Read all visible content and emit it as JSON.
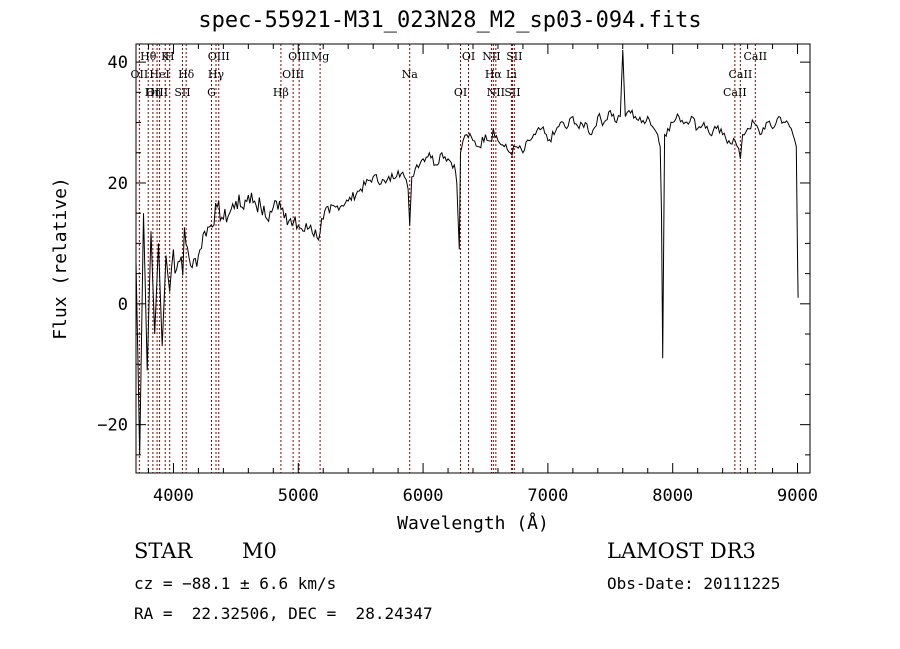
{
  "chart_data": {
    "type": "line",
    "title": "spec-55921-M31_023N28_M2_sp03-094.fits",
    "xlabel": "Wavelength (Å)",
    "ylabel": "Flux (relative)",
    "xlim": [
      3700,
      9100
    ],
    "ylim": [
      -28,
      43
    ],
    "xticks": [
      4000,
      5000,
      6000,
      7000,
      8000,
      9000
    ],
    "yticks": [
      -20,
      0,
      20,
      40
    ],
    "series": [
      {
        "name": "flux",
        "x": [
          3700,
          3730,
          3760,
          3790,
          3820,
          3850,
          3880,
          3910,
          3940,
          3970,
          4000,
          4050,
          4100,
          4150,
          4200,
          4250,
          4300,
          4350,
          4400,
          4450,
          4500,
          4550,
          4600,
          4650,
          4700,
          4750,
          4800,
          4850,
          4900,
          4950,
          5000,
          5050,
          5100,
          5150,
          5200,
          5250,
          5300,
          5400,
          5500,
          5600,
          5700,
          5800,
          5850,
          5880,
          5893,
          5910,
          5950,
          6000,
          6050,
          6100,
          6150,
          6200,
          6250,
          6270,
          6290,
          6300,
          6320,
          6350,
          6400,
          6450,
          6500,
          6550,
          6563,
          6600,
          6650,
          6700,
          6750,
          6800,
          6850,
          6900,
          6950,
          7000,
          7050,
          7100,
          7150,
          7200,
          7250,
          7300,
          7350,
          7400,
          7450,
          7500,
          7550,
          7580,
          7600,
          7620,
          7650,
          7700,
          7750,
          7800,
          7850,
          7880,
          7900,
          7910,
          7920,
          7935,
          7960,
          8000,
          8050,
          8100,
          8150,
          8200,
          8250,
          8300,
          8350,
          8400,
          8450,
          8500,
          8542,
          8560,
          8600,
          8650,
          8700,
          8750,
          8800,
          8850,
          8900,
          8950,
          8990,
          9000,
          9005
        ],
        "y": [
          7,
          -25,
          15,
          -11,
          12,
          -5,
          10,
          -7,
          8,
          2,
          9,
          7,
          10,
          6,
          8,
          12,
          13,
          16,
          14,
          15,
          17,
          16,
          18,
          17,
          16,
          14,
          16,
          17,
          15,
          13,
          13,
          12,
          13,
          11,
          14,
          15,
          16,
          17,
          19,
          21,
          20,
          22,
          21,
          19,
          13,
          21,
          23,
          24,
          25,
          23,
          25,
          24,
          23,
          20,
          9,
          25,
          27,
          28,
          27,
          26,
          28,
          27,
          29,
          27,
          26,
          25,
          26,
          25,
          27,
          28,
          29,
          27,
          28,
          30,
          29,
          31,
          29,
          30,
          28,
          31,
          30,
          32,
          30,
          31,
          42,
          31,
          32,
          31,
          30,
          31,
          29,
          28,
          26,
          15,
          -9,
          28,
          29,
          30,
          31,
          30,
          31,
          29,
          30,
          28,
          29,
          28,
          27,
          27,
          24,
          28,
          29,
          30,
          28,
          30,
          29,
          31,
          30,
          29,
          26,
          8,
          1
        ]
      }
    ],
    "lines": [
      {
        "label": "Hθ",
        "x": 3798
      },
      {
        "label": "OII",
        "x": 3727
      },
      {
        "label": "OIII",
        "x": 3869
      },
      {
        "label": "K",
        "x": 3934
      },
      {
        "label": "HeI",
        "x": 3889
      },
      {
        "label": "Hη",
        "x": 3835
      },
      {
        "label": "H",
        "x": 3970
      },
      {
        "label": "Hδ",
        "x": 4102
      },
      {
        "label": "SII",
        "x": 4072
      },
      {
        "label": "OIII",
        "x": 4363
      },
      {
        "label": "Hγ",
        "x": 4341
      },
      {
        "label": "G",
        "x": 4305
      },
      {
        "label": "OIII",
        "x": 5007
      },
      {
        "label": "OIII",
        "x": 4959
      },
      {
        "label": "Hβ",
        "x": 4861
      },
      {
        "label": "Mg",
        "x": 5175
      },
      {
        "label": "Na",
        "x": 5893
      },
      {
        "label": "OI",
        "x": 6300
      },
      {
        "label": "OI",
        "x": 6364
      },
      {
        "label": "Hα",
        "x": 6563
      },
      {
        "label": "SII",
        "x": 6716
      },
      {
        "label": "NII",
        "x": 6548
      },
      {
        "label": "Li",
        "x": 6708
      },
      {
        "label": "NII",
        "x": 6583
      },
      {
        "label": "SII",
        "x": 6731
      },
      {
        "label": "CaII",
        "x": 8542
      },
      {
        "label": "CaII",
        "x": 8498
      },
      {
        "label": "CaII",
        "x": 8662
      }
    ]
  },
  "info": {
    "class": "STAR",
    "subclass": "M0",
    "survey": "LAMOST DR3",
    "cz": "cz = −88.1 ± 6.6 km/s",
    "obs_date": "Obs-Date: 20111225",
    "coords": "RA =  22.32506, DEC =  28.24347"
  },
  "colors": {
    "line_marker": "#8b0000",
    "axis": "#000000"
  }
}
